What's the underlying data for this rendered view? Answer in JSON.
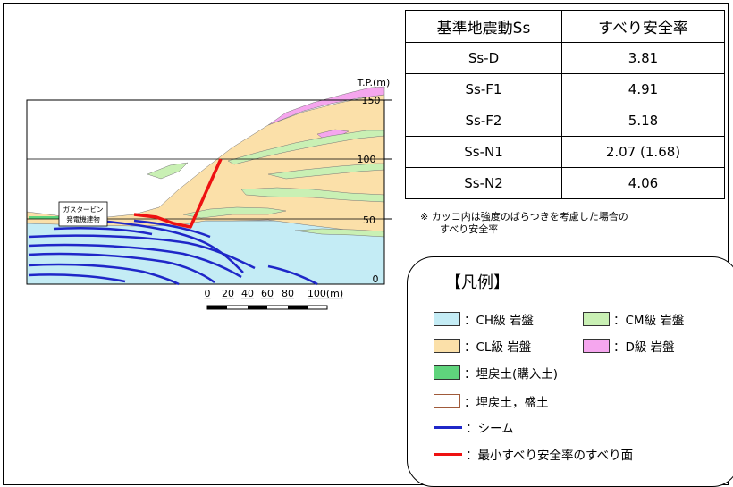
{
  "diagram": {
    "elevation_unit": "T.P.(m)",
    "elevation_ticks": [
      "150",
      "100",
      "50",
      "0"
    ],
    "distance_ticks": [
      "0",
      "20",
      "40",
      "60",
      "80",
      "100(m)"
    ],
    "building_label_line1": "ガスタービン",
    "building_label_line2": "発電機建物"
  },
  "table": {
    "headers": [
      "基準地震動Ss",
      "すべり安全率"
    ],
    "rows": [
      {
        "motion": "Ss-D",
        "factor": "3.81"
      },
      {
        "motion": "Ss-F1",
        "factor": "4.91"
      },
      {
        "motion": "Ss-F2",
        "factor": "5.18"
      },
      {
        "motion": "Ss-N1",
        "factor": "2.07 (1.68)"
      },
      {
        "motion": "Ss-N2",
        "factor": "4.06"
      }
    ]
  },
  "note": {
    "line1": "※ カッコ内は強度のばらつきを考慮した場合の",
    "line2": "すべり安全率"
  },
  "legend": {
    "title": "【凡例】",
    "items": {
      "ch": {
        "label": "：CH級 岩盤",
        "color": "#c4ecf5"
      },
      "cm": {
        "label": "：CM級 岩盤",
        "color": "#c9f0b4"
      },
      "cl": {
        "label": "：CL級 岩盤",
        "color": "#fbe0a9"
      },
      "d": {
        "label": "：D級 岩盤",
        "color": "#f5a6ee"
      },
      "purchased": {
        "label": "：埋戻土(購入土)",
        "color": "#5fd47c"
      },
      "backfill": {
        "label": "：埋戻土，盛土",
        "color": "#ffffff"
      },
      "seam": {
        "label": "：シーム",
        "color": "#1f27c8"
      },
      "slip": {
        "label": "：最小すべり安全率のすべり面",
        "color": "#ee1111"
      }
    }
  }
}
